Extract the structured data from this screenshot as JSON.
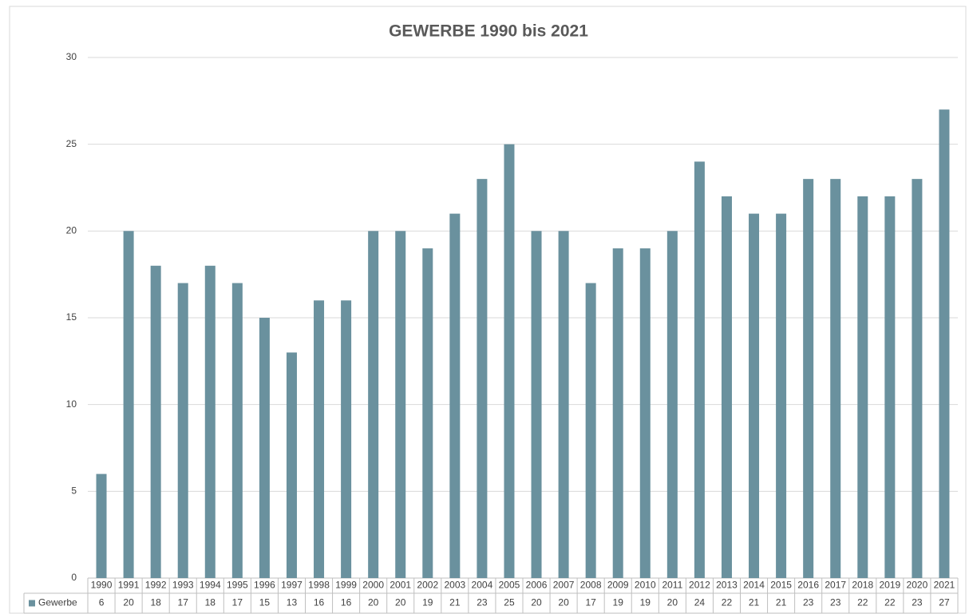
{
  "chart_data": {
    "type": "bar",
    "title": "GEWERBE 1990 bis 2021",
    "categories": [
      "1990",
      "1991",
      "1992",
      "1993",
      "1994",
      "1995",
      "1996",
      "1997",
      "1998",
      "1999",
      "2000",
      "2001",
      "2002",
      "2003",
      "2004",
      "2005",
      "2006",
      "2007",
      "2008",
      "2009",
      "2010",
      "2011",
      "2012",
      "2013",
      "2014",
      "2015",
      "2016",
      "2017",
      "2018",
      "2019",
      "2020",
      "2021"
    ],
    "series": [
      {
        "name": "Gewerbe",
        "color": "#6a919e",
        "values": [
          6,
          20,
          18,
          17,
          18,
          17,
          15,
          13,
          16,
          16,
          20,
          20,
          19,
          21,
          23,
          25,
          20,
          20,
          17,
          19,
          19,
          20,
          24,
          22,
          21,
          21,
          23,
          23,
          22,
          22,
          23,
          27
        ]
      }
    ],
    "ylim": [
      0,
      30
    ],
    "yticks": [
      0,
      5,
      10,
      15,
      20,
      25,
      30
    ],
    "grid": true
  }
}
